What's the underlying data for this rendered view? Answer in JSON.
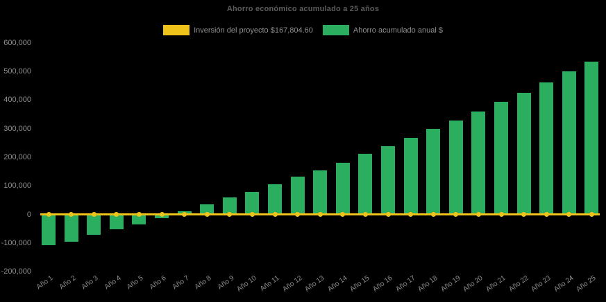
{
  "title": "Ahorro económico acumulado a 25 años",
  "legend": [
    {
      "id": "investment",
      "label": "Inversión del proyecto $167,804.60",
      "color": "#EFC319"
    },
    {
      "id": "savings",
      "label": "Ahorro acumulado anual $",
      "color": "#2BAE60"
    }
  ],
  "colors": {
    "background": "#000000",
    "bar": "#2BAE60",
    "line": "#EFC319",
    "title_text": "#5C5C5C",
    "axis_text": "#8F8F8F"
  },
  "chart_data": {
    "type": "bar",
    "title": "Ahorro económico acumulado a 25 años",
    "categories": [
      "Año 1",
      "Año 2",
      "Año 3",
      "Año 4",
      "Año 5",
      "Año 6",
      "Año 7",
      "Año 8",
      "Año 9",
      "Año 10",
      "Año 11",
      "Año 12",
      "Año 13",
      "Año 14",
      "Año 15",
      "Año 16",
      "Año 17",
      "Año 18",
      "Año 19",
      "Año 20",
      "Año 21",
      "Año 22",
      "Año 23",
      "Año 24",
      "Año 25"
    ],
    "series": [
      {
        "name": "Ahorro acumulado anual $",
        "type": "bar",
        "color": "#2BAE60",
        "values": [
          -108000,
          -94500,
          -72000,
          -52500,
          -34500,
          -12500,
          12000,
          34000,
          58500,
          79000,
          105500,
          132500,
          153500,
          181000,
          212500,
          239000,
          268000,
          298000,
          329000,
          359500,
          393000,
          425000,
          461000,
          499000,
          533000
        ]
      },
      {
        "name": "Inversión del proyecto $167,804.60",
        "type": "line",
        "color": "#EFC319",
        "marker": "circle",
        "values": [
          0,
          0,
          0,
          0,
          0,
          0,
          0,
          0,
          0,
          0,
          0,
          0,
          0,
          0,
          0,
          0,
          0,
          0,
          0,
          0,
          0,
          0,
          0,
          0,
          0
        ]
      }
    ],
    "yticks": [
      600000,
      500000,
      400000,
      300000,
      200000,
      100000,
      0,
      -100000,
      -200000
    ],
    "ytick_labels": [
      "600,000",
      "500,000",
      "400,000",
      "300,000",
      "200,000",
      "100,000",
      "0",
      "-100,000",
      "-200,000"
    ],
    "ylim": [
      -200000,
      600000
    ],
    "xlabel": "",
    "ylabel": "",
    "grid": false,
    "legend_position": "top-center",
    "background": "black"
  }
}
